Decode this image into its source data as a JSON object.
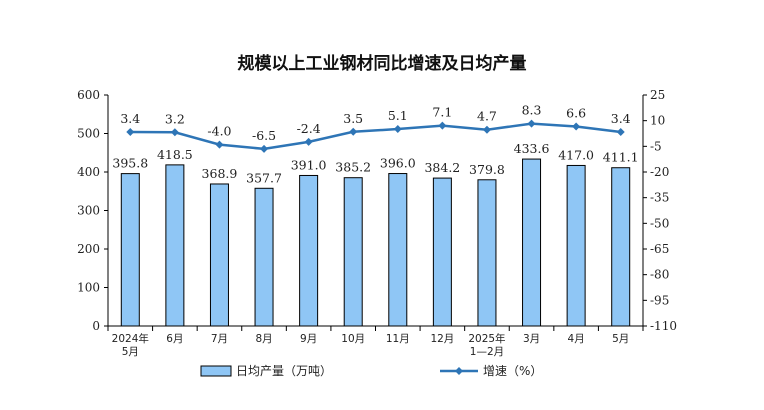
{
  "chart_data": {
    "type": "bar",
    "title": "规模以上工业钢材同比增速及日均产量",
    "categories": [
      [
        "2024年",
        "5月"
      ],
      [
        "6月"
      ],
      [
        "7月"
      ],
      [
        "8月"
      ],
      [
        "9月"
      ],
      [
        "10月"
      ],
      [
        "11月"
      ],
      [
        "12月"
      ],
      [
        "2025年",
        "1—2月"
      ],
      [
        "3月"
      ],
      [
        "4月"
      ],
      [
        "5月"
      ]
    ],
    "series": [
      {
        "name": "日均产量（万吨）",
        "type": "bar",
        "axis": "left",
        "values": [
          395.8,
          418.5,
          368.9,
          357.7,
          391.0,
          385.2,
          396.0,
          384.2,
          379.8,
          433.6,
          417.0,
          411.1
        ],
        "labels": [
          "395.8",
          "418.5",
          "368.9",
          "357.7",
          "391.0",
          "385.2",
          "396.0",
          "384.2",
          "379.8",
          "433.6",
          "417.0",
          "411.1"
        ],
        "color": "#8fc6f5",
        "border": "#000000"
      },
      {
        "name": "增速（%）",
        "type": "line",
        "axis": "right",
        "values": [
          3.4,
          3.2,
          -4.0,
          -6.5,
          -2.4,
          3.5,
          5.1,
          7.1,
          4.7,
          8.3,
          6.6,
          3.4
        ],
        "labels": [
          "3.4",
          "3.2",
          "-4.0",
          "-6.5",
          "-2.4",
          "3.5",
          "5.1",
          "7.1",
          "4.7",
          "8.3",
          "6.6",
          "3.4"
        ],
        "color": "#2e75b6"
      }
    ],
    "y_left": {
      "range": [
        0,
        600
      ],
      "ticks": [
        "0",
        "100",
        "200",
        "300",
        "400",
        "500",
        "600"
      ]
    },
    "y_right": {
      "range": [
        -110,
        25
      ],
      "ticks": [
        "25",
        "10",
        "-5",
        "-20",
        "-35",
        "-50",
        "-65",
        "-80",
        "-95",
        "-110"
      ]
    },
    "legend": {
      "position": "bottom"
    },
    "grid": false
  }
}
